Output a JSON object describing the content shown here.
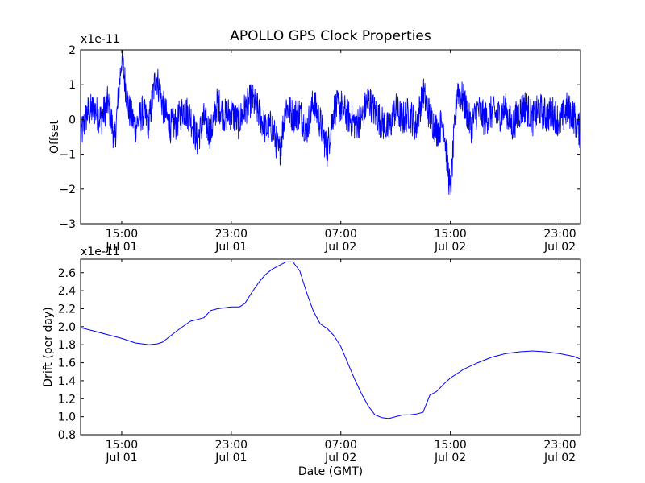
{
  "figure": {
    "title": "APOLLO GPS Clock Properties",
    "xlabel": "Date (GMT)"
  },
  "chart_data": [
    {
      "type": "line",
      "title": "APOLLO GPS Clock Properties",
      "ylabel": "Offset",
      "xlabel": "",
      "scale_label": "x1e-11",
      "x_unit": "hours since 2014-07-01 12:00 GMT",
      "xlim": [
        0,
        36.5
      ],
      "ylim": [
        -3,
        2
      ],
      "yticks": [
        -3,
        -2,
        -1,
        0,
        1,
        2
      ],
      "xticks": [
        {
          "x": 3,
          "time": "15:00",
          "date": "Jul 01"
        },
        {
          "x": 11,
          "time": "23:00",
          "date": "Jul 01"
        },
        {
          "x": 19,
          "time": "07:00",
          "date": "Jul 02"
        },
        {
          "x": 27,
          "time": "15:00",
          "date": "Jul 02"
        },
        {
          "x": 35,
          "time": "23:00",
          "date": "Jul 02"
        }
      ],
      "line_color": "#0000ff",
      "series": [
        {
          "name": "Offset",
          "note": "noisy signal, amplitude ~0.4 with bursts",
          "x": [
            0,
            0.5,
            1,
            1.5,
            2,
            2.5,
            3,
            3.5,
            4,
            4.5,
            5,
            5.5,
            6,
            6.5,
            7,
            7.5,
            8,
            8.5,
            9,
            9.5,
            10,
            10.5,
            11,
            11.5,
            12,
            12.5,
            13,
            13.5,
            14,
            14.5,
            15,
            15.5,
            16,
            16.5,
            17,
            17.5,
            18,
            18.5,
            19,
            19.5,
            20,
            20.5,
            21,
            21.5,
            22,
            22.5,
            23,
            23.5,
            24,
            24.5,
            25,
            25.5,
            26,
            26.5,
            27,
            27.5,
            28,
            28.5,
            29,
            29.5,
            30,
            30.5,
            31,
            31.5,
            32,
            32.5,
            33,
            33.5,
            34,
            34.5,
            35,
            35.5,
            36,
            36.5
          ],
          "values": [
            -0.5,
            0.2,
            0.3,
            0.0,
            0.5,
            -0.6,
            1.8,
            0.3,
            -0.2,
            0.2,
            -0.1,
            1.3,
            0.4,
            -0.2,
            -0.1,
            0.3,
            0.1,
            -0.6,
            0.0,
            -0.4,
            0.5,
            0.1,
            0.2,
            -0.1,
            0.3,
            0.6,
            0.2,
            -0.3,
            -0.2,
            -1.0,
            0.4,
            0.1,
            0.2,
            -0.3,
            0.5,
            -0.1,
            -0.9,
            0.3,
            0.4,
            0.1,
            -0.1,
            0.0,
            0.6,
            0.2,
            -0.1,
            -0.3,
            0.3,
            0.0,
            0.2,
            -0.2,
            0.8,
            0.1,
            -0.3,
            -0.1,
            -2.1,
            0.9,
            0.5,
            -0.2,
            0.3,
            0.0,
            0.2,
            0.1,
            0.3,
            -0.2,
            0.2,
            0.4,
            0.0,
            0.3,
            0.1,
            0.2,
            -0.1,
            0.3,
            0.1,
            -0.4
          ]
        }
      ]
    },
    {
      "type": "line",
      "title": "",
      "ylabel": "Drift (per day)",
      "xlabel": "Date (GMT)",
      "scale_label": "x1e-11",
      "x_unit": "hours since 2014-07-01 12:00 GMT",
      "xlim": [
        0,
        36.5
      ],
      "ylim": [
        0.8,
        2.75
      ],
      "yticks": [
        0.8,
        1.0,
        1.2,
        1.4,
        1.6,
        1.8,
        2.0,
        2.2,
        2.4,
        2.6
      ],
      "ytick_labels": [
        "0.8",
        "1.0",
        "1.2",
        "1.4",
        "1.6",
        "1.8",
        "2.0",
        "2.2",
        "2.4",
        "2.6"
      ],
      "xticks": [
        {
          "x": 3,
          "time": "15:00",
          "date": "Jul 01"
        },
        {
          "x": 11,
          "time": "23:00",
          "date": "Jul 01"
        },
        {
          "x": 19,
          "time": "07:00",
          "date": "Jul 02"
        },
        {
          "x": 27,
          "time": "15:00",
          "date": "Jul 02"
        },
        {
          "x": 35,
          "time": "23:00",
          "date": "Jul 02"
        }
      ],
      "line_color": "#0000ff",
      "series": [
        {
          "name": "Drift",
          "x": [
            0,
            1,
            2,
            3,
            4,
            5,
            5.6,
            6,
            7,
            8,
            9,
            9.5,
            10,
            10.5,
            11,
            11.6,
            12,
            12.5,
            13,
            13.5,
            14,
            14.5,
            15,
            15.5,
            16,
            16.5,
            17,
            17.5,
            18,
            18.5,
            19,
            19.5,
            20,
            20.5,
            21,
            21.5,
            22,
            22.5,
            23,
            23.5,
            24,
            24.5,
            25,
            25.5,
            26,
            26.5,
            27,
            27.5,
            28,
            29,
            30,
            31,
            32,
            33,
            34,
            35,
            36,
            36.5
          ],
          "values": [
            1.99,
            1.95,
            1.91,
            1.87,
            1.82,
            1.8,
            1.81,
            1.83,
            1.95,
            2.06,
            2.1,
            2.18,
            2.2,
            2.21,
            2.22,
            2.22,
            2.26,
            2.38,
            2.49,
            2.58,
            2.64,
            2.68,
            2.72,
            2.72,
            2.62,
            2.38,
            2.17,
            2.03,
            1.98,
            1.9,
            1.78,
            1.6,
            1.42,
            1.26,
            1.12,
            1.02,
            0.99,
            0.98,
            1.0,
            1.02,
            1.02,
            1.03,
            1.05,
            1.24,
            1.28,
            1.36,
            1.43,
            1.48,
            1.53,
            1.6,
            1.66,
            1.7,
            1.72,
            1.73,
            1.72,
            1.7,
            1.67,
            1.64
          ]
        }
      ]
    }
  ]
}
